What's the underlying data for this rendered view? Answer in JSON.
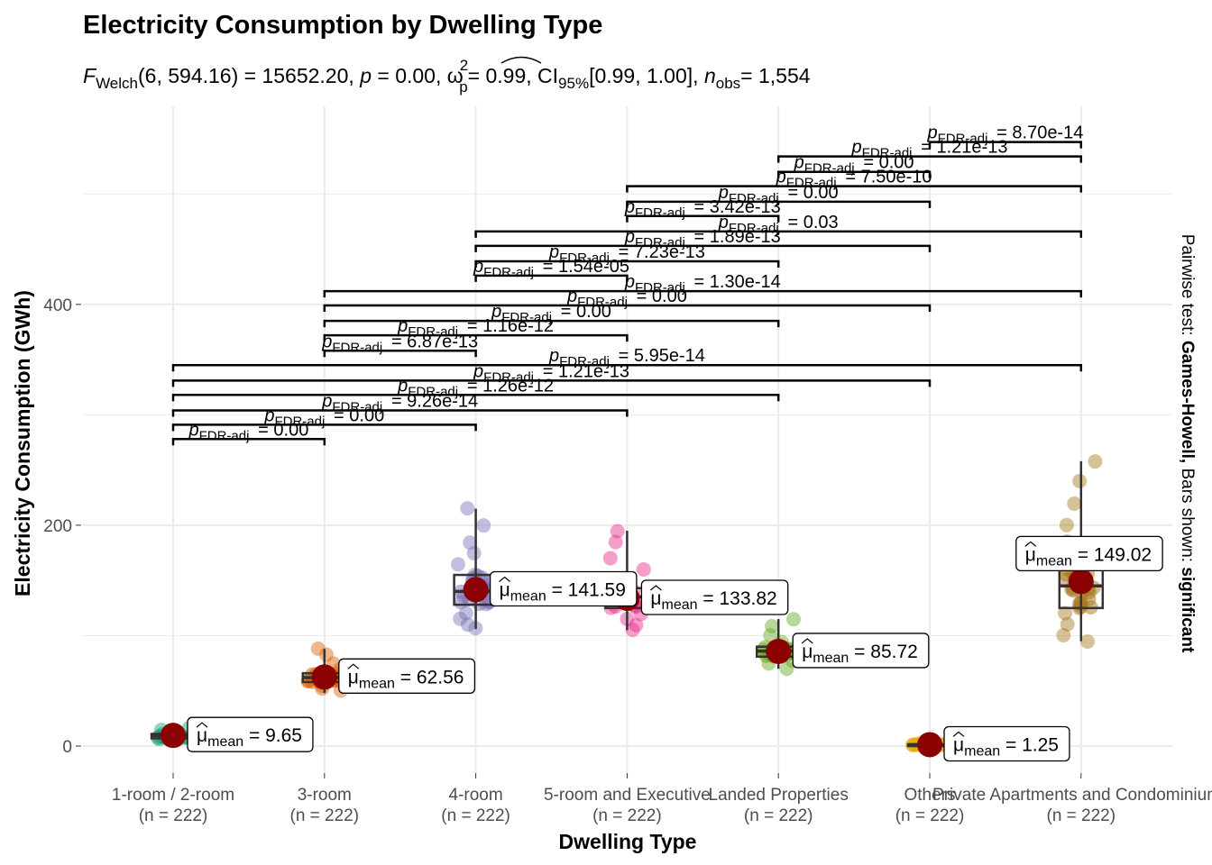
{
  "chart_data": {
    "type": "box-violin-scatter",
    "title": "Electricity Consumption by Dwelling Type",
    "subtitle": {
      "stat_symbol": "F",
      "stat_sub": "Welch",
      "df": "(6, 594.16)",
      "stat_value": "= 15652.20,",
      "p_symbol": "p",
      "p_value": "= 0.00,",
      "effect_symbol": "ω",
      "effect_sup": "2",
      "effect_sub": "p",
      "effect_value": "= 0.99,",
      "ci_label": "CI",
      "ci_sub": "95%",
      "ci_value": "[0.99, 1.00],",
      "n_symbol": "n",
      "n_sub": "obs",
      "n_value": "= 1,554"
    },
    "xlabel": "Dwelling Type",
    "ylabel": "Electricity Consumption (GWh)",
    "caption": {
      "prefix": "Pairwise test: ",
      "test": "Games-Howell,",
      "middle": " Bars shown: ",
      "bars": "significant"
    },
    "ylim": [
      -35,
      570
    ],
    "yticks": [
      0,
      200,
      400
    ],
    "grid": true,
    "categories": [
      "1-room / 2-room",
      "3-room",
      "4-room",
      "5-room and Executive",
      "Landed Properties",
      "Others",
      "Private Apartments and Condominiums"
    ],
    "n_label": "(n = 222)",
    "mean_label_prefix": "μ",
    "mean_label_sub": "mean",
    "colors": [
      "#1B9E77",
      "#D95F02",
      "#7570B3",
      "#E7298A",
      "#66A61E",
      "#E6AB02",
      "#A6761D"
    ],
    "mean_point_color": "#8B0000",
    "groups": [
      {
        "category": "1-room / 2-room",
        "mean": 9.65,
        "mean_label": "= 9.65",
        "min": 5,
        "q1": 7,
        "median": 9.5,
        "q3": 11,
        "max": 17,
        "points": [
          5,
          6,
          7,
          8,
          8.5,
          9,
          9.5,
          10,
          11,
          12,
          14,
          17
        ]
      },
      {
        "category": "3-room",
        "mean": 62.56,
        "mean_label": "= 62.56",
        "min": 48,
        "q1": 58,
        "median": 62,
        "q3": 66,
        "max": 88,
        "points": [
          50,
          52,
          55,
          57,
          60,
          62,
          64,
          66,
          70,
          75,
          82,
          88
        ]
      },
      {
        "category": "4-room",
        "mean": 141.59,
        "mean_label": "= 141.59",
        "min": 106,
        "q1": 128,
        "median": 140,
        "q3": 155,
        "max": 215,
        "points": [
          106,
          110,
          115,
          120,
          128,
          135,
          140,
          148,
          155,
          165,
          175,
          185,
          200,
          215
        ]
      },
      {
        "category": "5-room and Executive",
        "mean": 133.82,
        "mean_label": "= 133.82",
        "min": 105,
        "q1": 125,
        "median": 135,
        "q3": 143,
        "max": 195,
        "points": [
          105,
          110,
          115,
          120,
          125,
          130,
          135,
          140,
          145,
          150,
          160,
          170,
          185,
          195
        ]
      },
      {
        "category": "Landed Properties",
        "mean": 85.72,
        "mean_label": "= 85.72",
        "min": 70,
        "q1": 81,
        "median": 86,
        "q3": 90,
        "max": 115,
        "points": [
          70,
          75,
          78,
          82,
          85,
          87,
          90,
          95,
          100,
          108,
          115
        ]
      },
      {
        "category": "Others",
        "mean": 1.25,
        "mean_label": "= 1.25",
        "min": 0,
        "q1": 0.8,
        "median": 1.2,
        "q3": 1.6,
        "max": 3,
        "points": [
          0.5,
          1,
          1.2,
          1.5,
          2,
          3
        ]
      },
      {
        "category": "Private Apartments and Condominiums",
        "mean": 149.02,
        "mean_label": "= 149.02",
        "min": 95,
        "q1": 125,
        "median": 145,
        "q3": 165,
        "max": 258,
        "points": [
          95,
          100,
          110,
          120,
          130,
          140,
          150,
          160,
          170,
          185,
          200,
          220,
          240,
          258
        ]
      }
    ],
    "pvalue_label_prefix": "p",
    "pvalue_label_sub": "FDR-adj.",
    "pairwise": [
      {
        "from": 0,
        "to": 1,
        "p": "= 0.00",
        "y": 278
      },
      {
        "from": 0,
        "to": 2,
        "p": "= 0.00",
        "y": 291
      },
      {
        "from": 0,
        "to": 3,
        "p": "= 9.26e-14",
        "y": 304
      },
      {
        "from": 0,
        "to": 4,
        "p": "= 1.26e-12",
        "y": 318
      },
      {
        "from": 0,
        "to": 5,
        "p": "= 1.21e-13",
        "y": 331
      },
      {
        "from": 0,
        "to": 6,
        "p": "= 5.95e-14",
        "y": 345
      },
      {
        "from": 1,
        "to": 2,
        "p": "= 6.87e-13",
        "y": 358
      },
      {
        "from": 1,
        "to": 3,
        "p": "= 1.16e-12",
        "y": 372
      },
      {
        "from": 1,
        "to": 4,
        "p": "= 0.00",
        "y": 385
      },
      {
        "from": 1,
        "to": 5,
        "p": "= 0.00",
        "y": 399
      },
      {
        "from": 1,
        "to": 6,
        "p": "= 1.30e-14",
        "y": 412
      },
      {
        "from": 2,
        "to": 3,
        "p": "= 1.54e-05",
        "y": 426
      },
      {
        "from": 2,
        "to": 4,
        "p": "= 7.23e-13",
        "y": 439
      },
      {
        "from": 2,
        "to": 5,
        "p": "= 1.89e-13",
        "y": 453
      },
      {
        "from": 2,
        "to": 6,
        "p": "= 0.03",
        "y": 466
      },
      {
        "from": 3,
        "to": 4,
        "p": "= 3.42e-13",
        "y": 480
      },
      {
        "from": 3,
        "to": 5,
        "p": "= 0.00",
        "y": 493
      },
      {
        "from": 3,
        "to": 6,
        "p": "= 7.50e-10",
        "y": 507
      },
      {
        "from": 4,
        "to": 5,
        "p": "= 0.00",
        "y": 520
      },
      {
        "from": 4,
        "to": 6,
        "p": "= 1.21e-13",
        "y": 534
      },
      {
        "from": 5,
        "to": 6,
        "p": "= 8.70e-14",
        "y": 547
      }
    ]
  }
}
